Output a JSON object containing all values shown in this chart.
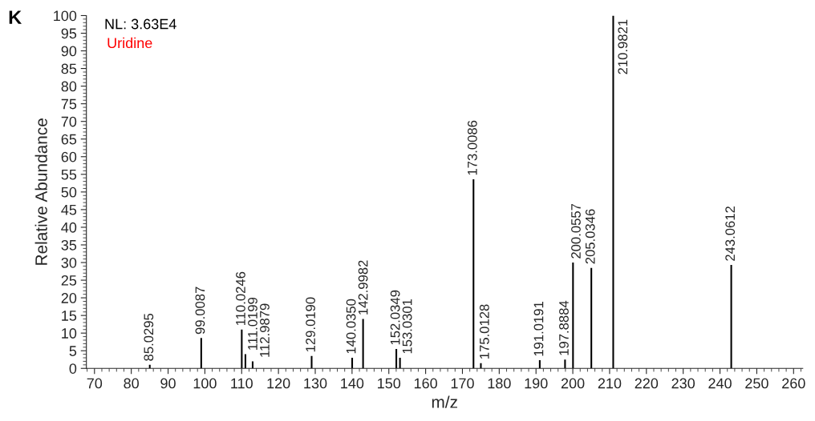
{
  "chart_data": {
    "type": "bar",
    "xlabel": "m/z",
    "ylabel": "Relative Abundance",
    "annotations": [
      "K",
      "NL: 3.63E4",
      "Uridine",
      {
        "text": "85.0295",
        "x": 85.0295,
        "y": 1
      },
      {
        "text": "99.0087",
        "x": 99.0087,
        "y": 8.6
      },
      {
        "text": "110.0246",
        "x": 110.0246,
        "y": 11
      },
      {
        "text": "111.0199",
        "x": 111.0199,
        "y": 4
      },
      {
        "text": "112.9879",
        "x": 112.9879,
        "y": 2
      },
      {
        "text": "129.0190",
        "x": 129.019,
        "y": 3.5
      },
      {
        "text": "140.0350",
        "x": 140.035,
        "y": 3
      },
      {
        "text": "142.9982",
        "x": 142.9982,
        "y": 14
      },
      {
        "text": "152.0349",
        "x": 152.0349,
        "y": 5.5
      },
      {
        "text": "153.0301",
        "x": 153.0301,
        "y": 3
      },
      {
        "text": "173.0086",
        "x": 173.0086,
        "y": 53.6
      },
      {
        "text": "175.0128",
        "x": 175.0128,
        "y": 1.5
      },
      {
        "text": "191.0191",
        "x": 191.0191,
        "y": 2.3
      },
      {
        "text": "197.8884",
        "x": 197.8884,
        "y": 2.5
      },
      {
        "text": "200.0557",
        "x": 200.0557,
        "y": 30
      },
      {
        "text": "205.0346",
        "x": 205.0346,
        "y": 28.5
      },
      {
        "text": "210.9821",
        "x": 210.9821,
        "y": 100
      },
      {
        "text": "243.0612",
        "x": 243.0612,
        "y": 29.3
      }
    ],
    "x": [
      85.0295,
      99.0087,
      110.0246,
      111.0199,
      112.9879,
      129.019,
      140.035,
      142.9982,
      152.0349,
      153.0301,
      173.0086,
      175.0128,
      191.0191,
      197.8884,
      200.0557,
      205.0346,
      210.9821,
      243.0612
    ],
    "values": [
      1,
      8.6,
      11,
      4,
      2,
      3.5,
      3,
      14,
      5.5,
      3,
      53.6,
      1.5,
      2.3,
      2.5,
      30,
      28.5,
      100,
      29.3
    ],
    "color": "#000000",
    "xlim": [
      67.8,
      262.5
    ],
    "xticks": [
      70,
      80,
      90,
      100,
      110,
      120,
      130,
      140,
      150,
      160,
      170,
      180,
      190,
      200,
      210,
      220,
      230,
      240,
      250,
      260
    ],
    "ylim": [
      0,
      100
    ],
    "yticks": [
      0,
      5,
      10,
      15,
      20,
      25,
      30,
      35,
      40,
      45,
      50,
      55,
      60,
      65,
      70,
      75,
      80,
      85,
      90,
      95,
      100
    ],
    "grid": false,
    "legend": false
  }
}
